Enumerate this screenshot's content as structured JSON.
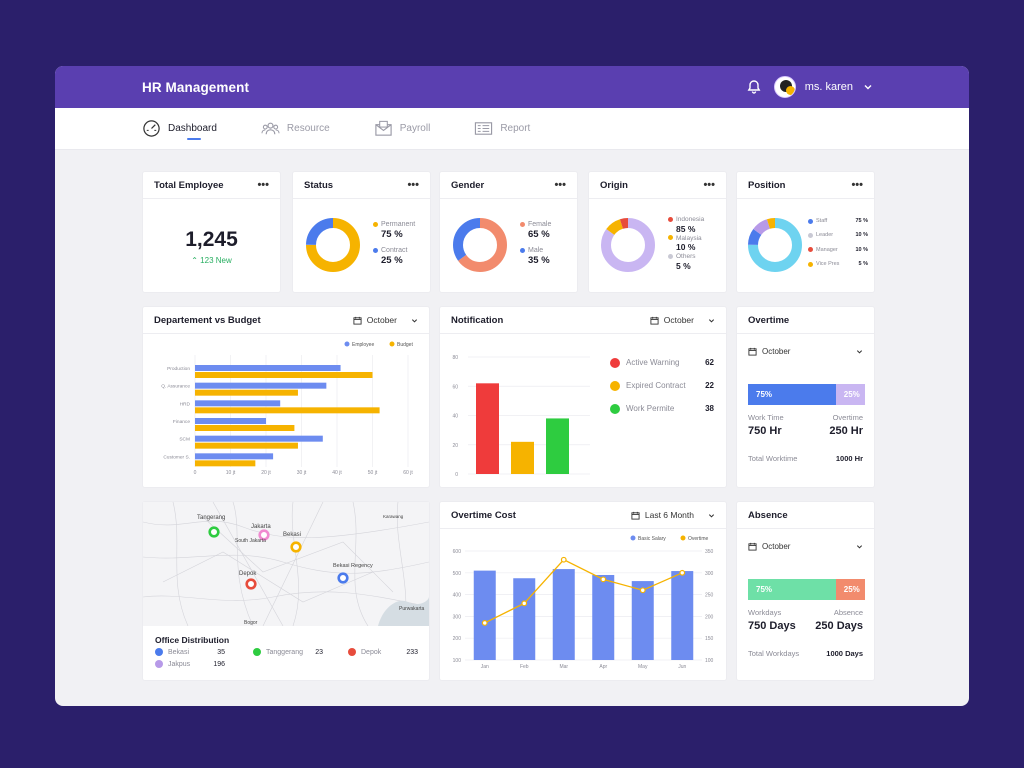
{
  "header": {
    "title": "HR Management",
    "user": "ms. karen"
  },
  "nav": [
    {
      "label": "Dashboard",
      "icon": "gauge-icon",
      "active": true
    },
    {
      "label": "Resource",
      "icon": "people-icon",
      "active": false
    },
    {
      "label": "Payroll",
      "icon": "envelope-icon",
      "active": false
    },
    {
      "label": "Report",
      "icon": "report-icon",
      "active": false
    }
  ],
  "total_employee": {
    "title": "Total Employee",
    "value": "1,245",
    "delta": "123 New"
  },
  "status": {
    "title": "Status",
    "items": [
      {
        "label": "Permanent",
        "value": "75 %",
        "color": "#f6b300",
        "pct": 75
      },
      {
        "label": "Contract",
        "value": "25 %",
        "color": "#4b7bec",
        "pct": 25
      }
    ]
  },
  "gender": {
    "title": "Gender",
    "items": [
      {
        "label": "Female",
        "value": "65 %",
        "color": "#f28b6d",
        "pct": 65
      },
      {
        "label": "Male",
        "value": "35 %",
        "color": "#4b7bec",
        "pct": 35
      }
    ]
  },
  "origin": {
    "title": "Origin",
    "items": [
      {
        "label": "Indonesia",
        "value": "85 %",
        "color": "#e74c3c",
        "pct": 85
      },
      {
        "label": "Malaysia",
        "value": "10 %",
        "color": "#f6b300",
        "pct": 10
      },
      {
        "label": "Others",
        "value": "5 %",
        "color": "#c9c9d4",
        "pct": 5
      }
    ]
  },
  "position": {
    "title": "Position",
    "items": [
      {
        "label": "Staff",
        "value": "75 %",
        "color": "#4b7bec",
        "pct": 75
      },
      {
        "label": "Leader",
        "value": "10 %",
        "color": "#c9c9d4",
        "pct": 10
      },
      {
        "label": "Manager",
        "value": "10 %",
        "color": "#e74c3c",
        "pct": 10
      },
      {
        "label": "Vice Pres",
        "value": "5 %",
        "color": "#f6b300",
        "pct": 5
      }
    ],
    "donut_colors": [
      "#6ed3f0",
      "#4b7bec",
      "#b79ae8",
      "#f6b300"
    ]
  },
  "dept_budget": {
    "title": "Departement vs Budget",
    "filter": "October"
  },
  "notification": {
    "title": "Notification",
    "filter": "October",
    "items": [
      {
        "label": "Active Warning",
        "value": "62",
        "color": "#ef3b3b"
      },
      {
        "label": "Expired Contract",
        "value": "22",
        "color": "#f6b300"
      },
      {
        "label": "Work Permite",
        "value": "38",
        "color": "#2ecc40"
      }
    ]
  },
  "overtime": {
    "title": "Overtime",
    "filter": "October",
    "bar_a": "75%",
    "bar_b": "25%",
    "bar_a_color": "#4b7bec",
    "bar_b_color": "#c9b6f2",
    "left_label": "Work Time",
    "right_label": "Overtime",
    "left_value": "750 Hr",
    "right_value": "250 Hr",
    "total_label": "Total Worktime",
    "total_value": "1000 Hr"
  },
  "absence": {
    "title": "Absence",
    "filter": "October",
    "bar_a": "75%",
    "bar_b": "25%",
    "bar_a_color": "#6ee0a7",
    "bar_b_color": "#f28b6d",
    "left_label": "Workdays",
    "right_label": "Absence",
    "left_value": "750 Days",
    "right_value": "250 Days",
    "total_label": "Total Workdays",
    "total_value": "1000 Days"
  },
  "overtime_cost": {
    "title": "Overtime Cost",
    "filter": "Last 6 Month"
  },
  "map": {
    "labels": [
      "Tangerang",
      "Jakarta",
      "Bekasi",
      "South Jakarta",
      "Depok",
      "Bekasi Regency",
      "Bogor",
      "Purwakarta",
      "Karawang"
    ],
    "markers": [
      {
        "name": "Tangerang",
        "color": "#2ecc40"
      },
      {
        "name": "Jakarta",
        "color": "#f08ad0"
      },
      {
        "name": "Bekasi",
        "color": "#f6b300"
      },
      {
        "name": "Depok",
        "color": "#e74c3c"
      },
      {
        "name": "Bekasi Regency",
        "color": "#4b7bec"
      }
    ]
  },
  "office_distribution": {
    "title": "Office Distribution",
    "items": [
      {
        "label": "Bekasi",
        "value": "35",
        "color": "#4b7bec"
      },
      {
        "label": "Tanggerang",
        "value": "23",
        "color": "#2ecc40"
      },
      {
        "label": "Depok",
        "value": "233",
        "color": "#e74c3c"
      },
      {
        "label": "Jakpus",
        "value": "196",
        "color": "#b79ae8"
      }
    ]
  },
  "chart_data": [
    {
      "type": "bar",
      "title": "Departement vs Budget",
      "orientation": "horizontal",
      "categories": [
        "Production",
        "Q. Assurance",
        "HRD",
        "Finance",
        "SCM",
        "Customer S."
      ],
      "series": [
        {
          "name": "Employee",
          "color": "#6d8cf0",
          "values": [
            41,
            37,
            24,
            20,
            36,
            22
          ]
        },
        {
          "name": "Budget",
          "color": "#f6b300",
          "values": [
            50,
            29,
            52,
            28,
            29,
            17
          ]
        }
      ],
      "x_ticks": [
        "0",
        "10 jt",
        "20 jt",
        "30 jt",
        "40 jt",
        "50 jt",
        "60 jt"
      ],
      "xlim": [
        0,
        60
      ],
      "legend": "top-right",
      "grid": true
    },
    {
      "type": "bar",
      "title": "Notification",
      "categories": [
        "Active Warning",
        "Expired Contract",
        "Work Permite"
      ],
      "values": [
        62,
        22,
        38
      ],
      "colors": [
        "#ef3b3b",
        "#f6b300",
        "#2ecc40"
      ],
      "y_ticks": [
        "0",
        "20",
        "40",
        "60",
        "80"
      ],
      "ylim": [
        0,
        80
      ],
      "grid": true
    },
    {
      "type": "bar",
      "title": "Overtime Cost",
      "categories": [
        "Jan",
        "Feb",
        "Mar",
        "Apr",
        "May",
        "Jun"
      ],
      "series": [
        {
          "name": "Basic Salary",
          "color": "#6d8cf0",
          "type": "bar",
          "values": [
            510,
            475,
            517,
            490,
            462,
            508
          ]
        },
        {
          "name": "Overtime",
          "color": "#f6b300",
          "type": "line",
          "values": [
            185,
            230,
            330,
            285,
            260,
            300
          ]
        }
      ],
      "y_left_ticks": [
        "100",
        "200",
        "300",
        "400",
        "500",
        "600"
      ],
      "ylim_left": [
        100,
        600
      ],
      "y_right_ticks": [
        "100",
        "150",
        "200",
        "250",
        "300",
        "350"
      ],
      "ylim_right": [
        100,
        350
      ],
      "legend": "top-right",
      "grid": true
    }
  ]
}
